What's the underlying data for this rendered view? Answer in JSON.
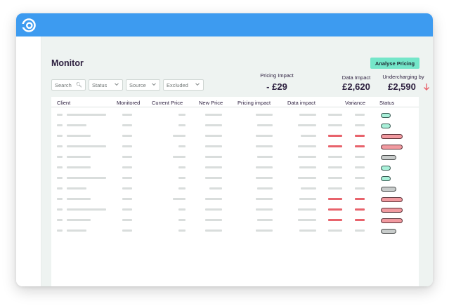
{
  "page": {
    "title": "Monitor"
  },
  "toolbar": {
    "analyse_label": "Analyse Pricing"
  },
  "filters": {
    "search_placeholder": "Search",
    "status_label": "Status",
    "source_label": "Source",
    "excluded_label": "Excluded"
  },
  "stats": {
    "pricing_impact_label": "Pricing Impact",
    "pricing_impact_value": "- £29",
    "data_impact_label": "Data Impact",
    "data_impact_value": "£2,620",
    "undercharging_label": "Undercharging by",
    "undercharging_value": "£2,590"
  },
  "table": {
    "columns": [
      "Client",
      "Monitored",
      "Current Price",
      "New Price",
      "Pricing impact",
      "Data impact",
      "Variance",
      "Status"
    ],
    "rows": [
      {
        "variance_negative": false,
        "status": "green"
      },
      {
        "variance_negative": false,
        "status": "green"
      },
      {
        "variance_negative": true,
        "status": "red"
      },
      {
        "variance_negative": true,
        "status": "red"
      },
      {
        "variance_negative": false,
        "status": "grey"
      },
      {
        "variance_negative": false,
        "status": "green"
      },
      {
        "variance_negative": false,
        "status": "green"
      },
      {
        "variance_negative": false,
        "status": "grey"
      },
      {
        "variance_negative": true,
        "status": "red"
      },
      {
        "variance_negative": true,
        "status": "red"
      },
      {
        "variance_negative": true,
        "status": "red"
      },
      {
        "variance_negative": false,
        "status": "grey"
      }
    ]
  },
  "colors": {
    "topbar": "#3d9bf0",
    "accent_button": "#74e6c9",
    "negative": "#e8636c",
    "status_green": "#a9f0d9",
    "status_red": "#f19aa0",
    "status_grey": "#c8cccb"
  },
  "icons": {
    "logo": "brand-logo-icon",
    "search": "search-icon",
    "chevron": "chevron-down-icon",
    "trend": "arrow-down-icon"
  }
}
